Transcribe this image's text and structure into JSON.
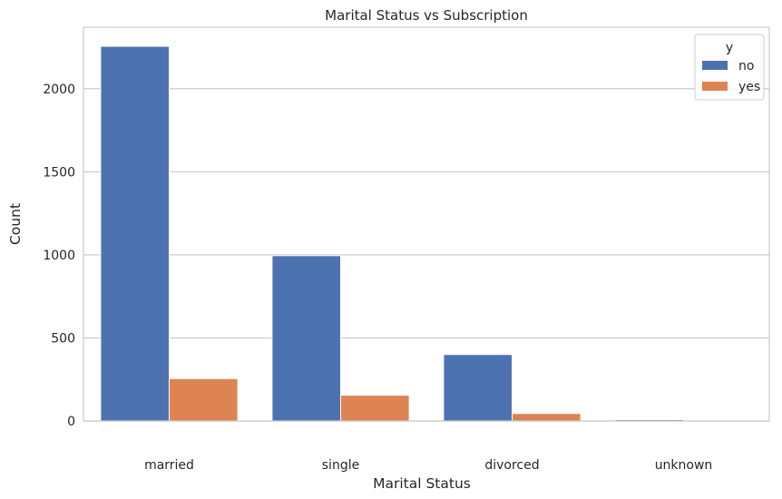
{
  "chart_data": {
    "type": "bar",
    "title": "Marital Status vs Subscription",
    "xlabel": "Marital Status",
    "ylabel": "Count",
    "categories": [
      "married",
      "single",
      "divorced",
      "unknown"
    ],
    "series": [
      {
        "name": "no",
        "values": [
          2255,
          995,
          400,
          8
        ],
        "color": "#4c72b0"
      },
      {
        "name": "yes",
        "values": [
          255,
          155,
          45,
          0
        ],
        "color": "#dd8452"
      }
    ],
    "ylim": [
      0,
      2370
    ],
    "yticks": [
      0,
      500,
      1000,
      1500,
      2000
    ],
    "grid": "horizontal",
    "legend": {
      "title": "y",
      "position": "top-right"
    }
  }
}
